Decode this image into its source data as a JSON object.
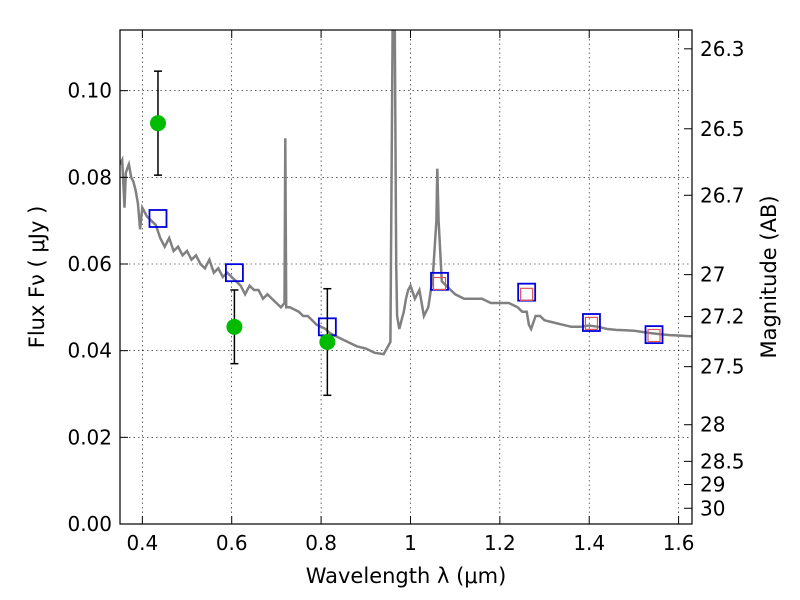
{
  "chart_data": {
    "type": "scatter",
    "xlabel": "Wavelength  λ (μm)",
    "ylabel": "Flux  Fν  ( μJy )",
    "y2label": "Magnitude (AB)",
    "xlim": [
      0.35,
      1.63
    ],
    "ylim": [
      0.0,
      0.114
    ],
    "grid": true,
    "x_ticks": [
      {
        "value": 0.4,
        "label": "0.4"
      },
      {
        "value": 0.6,
        "label": "0.6"
      },
      {
        "value": 0.8,
        "label": "0.8"
      },
      {
        "value": 1.0,
        "label": "1"
      },
      {
        "value": 1.2,
        "label": "1.2"
      },
      {
        "value": 1.4,
        "label": "1.4"
      },
      {
        "value": 1.6,
        "label": "1.6"
      }
    ],
    "y_ticks": [
      {
        "value": 0.0,
        "label": "0.00"
      },
      {
        "value": 0.02,
        "label": "0.02"
      },
      {
        "value": 0.04,
        "label": "0.04"
      },
      {
        "value": 0.06,
        "label": "0.06"
      },
      {
        "value": 0.08,
        "label": "0.08"
      },
      {
        "value": 0.1,
        "label": "0.10"
      }
    ],
    "mag_ticks": [
      {
        "value": 26.3,
        "label": "26.3"
      },
      {
        "value": 26.5,
        "label": "26.5"
      },
      {
        "value": 26.7,
        "label": "26.7"
      },
      {
        "value": 27.0,
        "label": "27"
      },
      {
        "value": 27.2,
        "label": "27.2"
      },
      {
        "value": 27.5,
        "label": "27.5"
      },
      {
        "value": 28.0,
        "label": "28"
      },
      {
        "value": 28.5,
        "label": "28.5"
      },
      {
        "value": 29.0,
        "label": "29"
      },
      {
        "value": 30.0,
        "label": "30"
      }
    ],
    "observed": {
      "color": "#00bb00",
      "points": [
        {
          "x": 0.435,
          "y": 0.0925,
          "err": 0.012
        },
        {
          "x": 0.606,
          "y": 0.0455,
          "err": 0.0085
        },
        {
          "x": 0.814,
          "y": 0.042,
          "err": 0.0123
        }
      ]
    },
    "model_photometry": {
      "color": "#0000dd",
      "points": [
        {
          "x": 0.435,
          "y": 0.0705
        },
        {
          "x": 0.606,
          "y": 0.058
        },
        {
          "x": 0.814,
          "y": 0.0455
        },
        {
          "x": 1.065,
          "y": 0.056
        },
        {
          "x": 1.26,
          "y": 0.0535
        },
        {
          "x": 1.405,
          "y": 0.0465
        },
        {
          "x": 1.545,
          "y": 0.0437
        }
      ]
    },
    "model_photometry_inner": {
      "color": "#dd5555",
      "points": [
        {
          "x": 1.065,
          "y": 0.0555
        },
        {
          "x": 1.26,
          "y": 0.053
        },
        {
          "x": 1.405,
          "y": 0.0463
        },
        {
          "x": 1.545,
          "y": 0.0435
        }
      ]
    },
    "sed_model": {
      "color": "#808080",
      "x": [
        0.35,
        0.355,
        0.36,
        0.363,
        0.366,
        0.37,
        0.375,
        0.38,
        0.385,
        0.39,
        0.395,
        0.4,
        0.405,
        0.41,
        0.42,
        0.43,
        0.44,
        0.45,
        0.46,
        0.47,
        0.48,
        0.49,
        0.5,
        0.51,
        0.52,
        0.53,
        0.54,
        0.55,
        0.56,
        0.57,
        0.58,
        0.59,
        0.6,
        0.61,
        0.62,
        0.63,
        0.64,
        0.65,
        0.66,
        0.67,
        0.68,
        0.69,
        0.7,
        0.71,
        0.718,
        0.72,
        0.722,
        0.73,
        0.74,
        0.75,
        0.76,
        0.77,
        0.78,
        0.79,
        0.8,
        0.81,
        0.82,
        0.83,
        0.84,
        0.86,
        0.88,
        0.9,
        0.92,
        0.94,
        0.955,
        0.96,
        0.962,
        0.965,
        0.968,
        0.97,
        0.975,
        0.98,
        0.985,
        0.99,
        0.995,
        1.0,
        1.01,
        1.02,
        1.03,
        1.04,
        1.05,
        1.058,
        1.06,
        1.063,
        1.07,
        1.08,
        1.09,
        1.1,
        1.12,
        1.14,
        1.16,
        1.18,
        1.2,
        1.22,
        1.24,
        1.25,
        1.26,
        1.265,
        1.27,
        1.28,
        1.29,
        1.3,
        1.32,
        1.34,
        1.36,
        1.38,
        1.4,
        1.42,
        1.44,
        1.46,
        1.48,
        1.5,
        1.52,
        1.54,
        1.56,
        1.58,
        1.6,
        1.63
      ],
      "y": [
        0.083,
        0.084,
        0.073,
        0.081,
        0.082,
        0.083,
        0.08,
        0.079,
        0.077,
        0.074,
        0.068,
        0.073,
        0.072,
        0.071,
        0.07,
        0.069,
        0.066,
        0.064,
        0.066,
        0.063,
        0.064,
        0.062,
        0.063,
        0.061,
        0.062,
        0.06,
        0.059,
        0.061,
        0.058,
        0.059,
        0.057,
        0.058,
        0.057,
        0.056,
        0.055,
        0.053,
        0.055,
        0.054,
        0.054,
        0.052,
        0.053,
        0.052,
        0.051,
        0.05,
        0.051,
        0.089,
        0.05,
        0.05,
        0.0495,
        0.049,
        0.048,
        0.048,
        0.047,
        0.046,
        0.0455,
        0.045,
        0.044,
        0.0435,
        0.043,
        0.042,
        0.041,
        0.0405,
        0.0395,
        0.0392,
        0.042,
        0.114,
        0.114,
        0.114,
        0.06,
        0.048,
        0.045,
        0.047,
        0.049,
        0.052,
        0.054,
        0.055,
        0.052,
        0.054,
        0.048,
        0.05,
        0.057,
        0.07,
        0.082,
        0.07,
        0.056,
        0.055,
        0.054,
        0.053,
        0.052,
        0.052,
        0.052,
        0.051,
        0.051,
        0.051,
        0.05,
        0.049,
        0.049,
        0.046,
        0.045,
        0.048,
        0.048,
        0.047,
        0.0465,
        0.046,
        0.0455,
        0.0455,
        0.0458,
        0.0455,
        0.045,
        0.0448,
        0.0447,
        0.0446,
        0.0443,
        0.044,
        0.0438,
        0.0436,
        0.0435,
        0.0433
      ]
    }
  }
}
